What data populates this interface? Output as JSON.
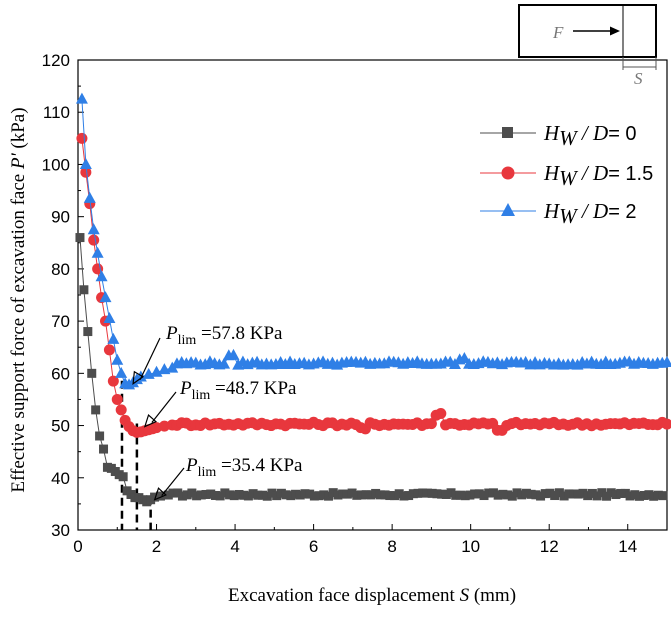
{
  "chart_data": {
    "type": "line",
    "title": "",
    "xlabel_text": "Excavation face displacement ",
    "xlabel_var": "S",
    "xlabel_unit": " (mm)",
    "ylabel_text": "Effective support force of excavation face ",
    "ylabel_var": "P'",
    "ylabel_unit": " (kPa)",
    "xlim": [
      0,
      15
    ],
    "ylim": [
      30,
      120
    ],
    "xticks": [
      0,
      2,
      4,
      6,
      8,
      10,
      12,
      14
    ],
    "yticks": [
      30,
      40,
      50,
      60,
      70,
      80,
      90,
      100,
      110,
      120
    ],
    "legend_position": "top-right",
    "series": [
      {
        "name_var": "H",
        "name_sub": "W",
        "name_mid": " / ",
        "name_var2": "D",
        "name_suffix": "= 0",
        "marker": "square",
        "color": "#4d4d4d",
        "plateau": 36.8,
        "x_head": [
          0.05,
          0.15,
          0.25,
          0.35,
          0.45,
          0.55,
          0.65,
          0.75,
          0.85,
          0.95,
          1.05,
          1.15,
          1.25,
          1.35,
          1.45,
          1.55,
          1.65,
          1.75,
          1.85,
          1.95,
          2.1,
          2.3
        ],
        "y_head": [
          86,
          76,
          68,
          60,
          53,
          48,
          45.5,
          42,
          41.8,
          41.2,
          40.6,
          40.2,
          37.5,
          36.8,
          36.2,
          36.2,
          35.8,
          35.4,
          35.8,
          36.3,
          36.5,
          36.7
        ]
      },
      {
        "name_var": "H",
        "name_sub": "W",
        "name_mid": " / ",
        "name_var2": "D",
        "name_suffix": "= 1.5",
        "marker": "circle",
        "color": "#e8373d",
        "plateau": 50.3,
        "x_head": [
          0.1,
          0.2,
          0.3,
          0.4,
          0.5,
          0.6,
          0.7,
          0.8,
          0.9,
          1.0,
          1.1,
          1.2,
          1.3,
          1.4,
          1.5,
          1.6,
          1.7,
          1.8,
          1.9,
          2.0,
          2.2,
          2.4
        ],
        "y_head": [
          105,
          98.5,
          92.5,
          85.5,
          80,
          74.5,
          70,
          64.5,
          58.5,
          55,
          53,
          51,
          49.8,
          49,
          48.7,
          48.8,
          49,
          49.2,
          49.4,
          49.6,
          49.9,
          50.1
        ]
      },
      {
        "name_var": "H",
        "name_sub": "W",
        "name_mid": " / ",
        "name_var2": "D",
        "name_suffix": "= 2",
        "marker": "triangle",
        "color": "#2f7fe6",
        "plateau": 61.9,
        "x_head": [
          0.1,
          0.2,
          0.3,
          0.4,
          0.5,
          0.6,
          0.7,
          0.8,
          0.9,
          1.0,
          1.1,
          1.2,
          1.3,
          1.4,
          1.5,
          1.6,
          1.8,
          2.0,
          2.2,
          2.4
        ],
        "y_head": [
          112.5,
          100,
          93.5,
          87.5,
          83,
          78.5,
          74.5,
          70.5,
          66.5,
          62.5,
          60,
          58,
          57.8,
          58.2,
          58.8,
          59.3,
          59.8,
          60.2,
          60.7,
          61
        ]
      }
    ],
    "annotations": [
      {
        "label_var": "P",
        "label_sub": "lim",
        "label_value": " =57.8 KPa",
        "point": [
          1.25,
          58.2
        ],
        "dash_x": 1.12
      },
      {
        "label_var": "P",
        "label_sub": "lim",
        "label_value": " =48.7 KPa",
        "point": [
          1.55,
          50.0
        ],
        "dash_x": 1.5
      },
      {
        "label_var": "P",
        "label_sub": "lim",
        "label_value": " =35.4 KPa",
        "point": [
          1.8,
          36.0
        ],
        "dash_x": 1.85
      }
    ],
    "inset": {
      "force_label": "F",
      "displacement_label": "S"
    }
  }
}
